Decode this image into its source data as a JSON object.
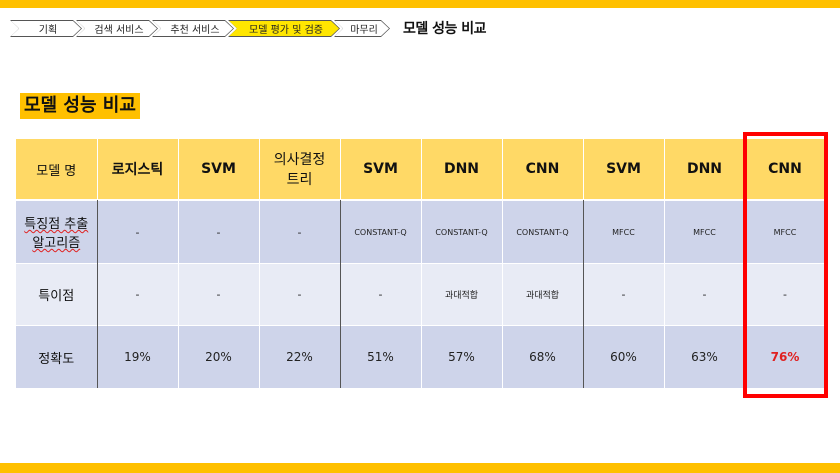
{
  "breadcrumb": {
    "items": [
      {
        "label": "기획",
        "active": false
      },
      {
        "label": "검색 서비스",
        "active": false
      },
      {
        "label": "추천 서비스",
        "active": false
      },
      {
        "label": "모델 평가 및 검증",
        "active": true
      },
      {
        "label": "마무리",
        "active": false
      }
    ]
  },
  "header": {
    "title": "모델 성능 비교"
  },
  "section": {
    "title": "모델 성능 비교"
  },
  "table": {
    "headers": [
      "모델 명",
      "로지스틱",
      "SVM",
      "의사결정\n트리",
      "SVM",
      "DNN",
      "CNN",
      "SVM",
      "DNN",
      "CNN"
    ],
    "rows": [
      {
        "label": "특징점 추출\n알고리즘",
        "cells": [
          "-",
          "-",
          "-",
          "CONSTANT-Q",
          "CONSTANT-Q",
          "CONSTANT-Q",
          "MFCC",
          "MFCC",
          "MFCC"
        ]
      },
      {
        "label": "특이점",
        "cells": [
          "-",
          "-",
          "-",
          "-",
          "과대적합",
          "과대적합",
          "-",
          "-",
          "-"
        ]
      },
      {
        "label": "정확도",
        "cells": [
          "19%",
          "20%",
          "22%",
          "51%",
          "57%",
          "68%",
          "60%",
          "63%",
          "76%"
        ]
      }
    ]
  },
  "colors": {
    "accent": "#ffc000",
    "header_bg": "#ffd966",
    "row_dark": "#ced4ea",
    "row_light": "#e8ebf5",
    "highlight": "#ff0000"
  }
}
